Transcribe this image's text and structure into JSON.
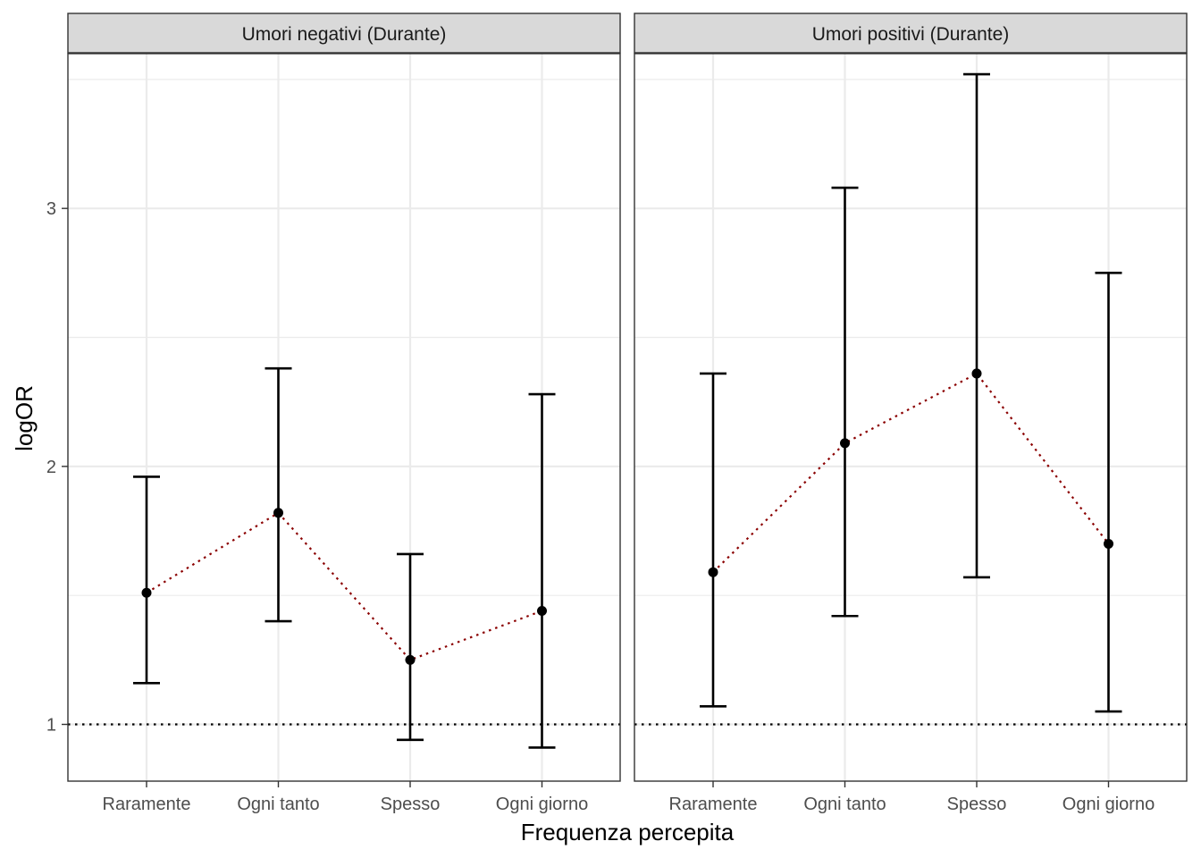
{
  "chart_data": {
    "type": "errorbar",
    "xlabel": "Frequenza percepita",
    "ylabel": "logOR",
    "categories": [
      "Raramente",
      "Ogni tanto",
      "Spesso",
      "Ogni giorno"
    ],
    "ylim": [
      0.78,
      3.6
    ],
    "yticks": [
      1,
      2,
      3
    ],
    "ytick_labels": [
      "1",
      "2",
      "3"
    ],
    "reference_line": 1,
    "grid": true,
    "colors": {
      "points": "#000000",
      "connector": "#8b0000",
      "reference": "#000000",
      "strip_bg": "#d9d9d9",
      "grid": "#ebebeb"
    },
    "panels": [
      {
        "title": "Umori negativi (Durante)",
        "estimates": [
          1.51,
          1.82,
          1.25,
          1.44
        ],
        "lower": [
          1.16,
          1.4,
          0.94,
          0.91
        ],
        "upper": [
          1.96,
          2.38,
          1.66,
          2.28
        ]
      },
      {
        "title": "Umori positivi (Durante)",
        "estimates": [
          1.59,
          2.09,
          2.36,
          1.7
        ],
        "lower": [
          1.07,
          1.42,
          1.57,
          1.05
        ],
        "upper": [
          2.36,
          3.08,
          3.52,
          2.75
        ]
      }
    ]
  }
}
